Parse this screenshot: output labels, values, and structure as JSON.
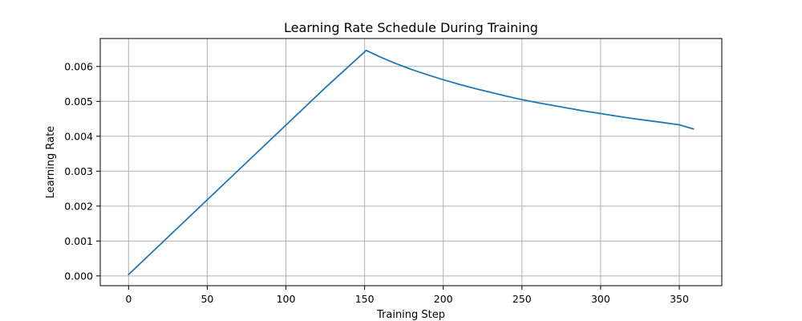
{
  "chart_data": {
    "type": "line",
    "title": "Learning Rate Schedule During Training",
    "xlabel": "Training Step",
    "ylabel": "Learning Rate",
    "xlim": [
      -18,
      377
    ],
    "ylim": [
      -0.00028,
      0.0068
    ],
    "grid": true,
    "x_ticks": [
      0,
      50,
      100,
      150,
      200,
      250,
      300,
      350
    ],
    "x_tick_labels": [
      "0",
      "50",
      "100",
      "150",
      "200",
      "250",
      "300",
      "350"
    ],
    "y_ticks": [
      0.0,
      0.001,
      0.002,
      0.003,
      0.004,
      0.005,
      0.006
    ],
    "y_tick_labels": [
      "0.000",
      "0.001",
      "0.002",
      "0.003",
      "0.004",
      "0.005",
      "0.006"
    ],
    "series": [
      {
        "color": "#1f77b4",
        "x": [
          0,
          25,
          50,
          75,
          100,
          125,
          151,
          160,
          170,
          180,
          190,
          200,
          210,
          220,
          230,
          240,
          250,
          260,
          270,
          280,
          290,
          300,
          310,
          320,
          330,
          340,
          350,
          359
        ],
        "y": [
          4e-05,
          0.00111,
          0.00218,
          0.00325,
          0.00432,
          0.00539,
          0.00646,
          0.00627,
          0.00608,
          0.00591,
          0.00576,
          0.00562,
          0.00549,
          0.00537,
          0.00526,
          0.00515,
          0.00505,
          0.00496,
          0.00488,
          0.0048,
          0.00472,
          0.00465,
          0.00458,
          0.00451,
          0.00445,
          0.00439,
          0.00433,
          0.00421
        ]
      }
    ]
  }
}
